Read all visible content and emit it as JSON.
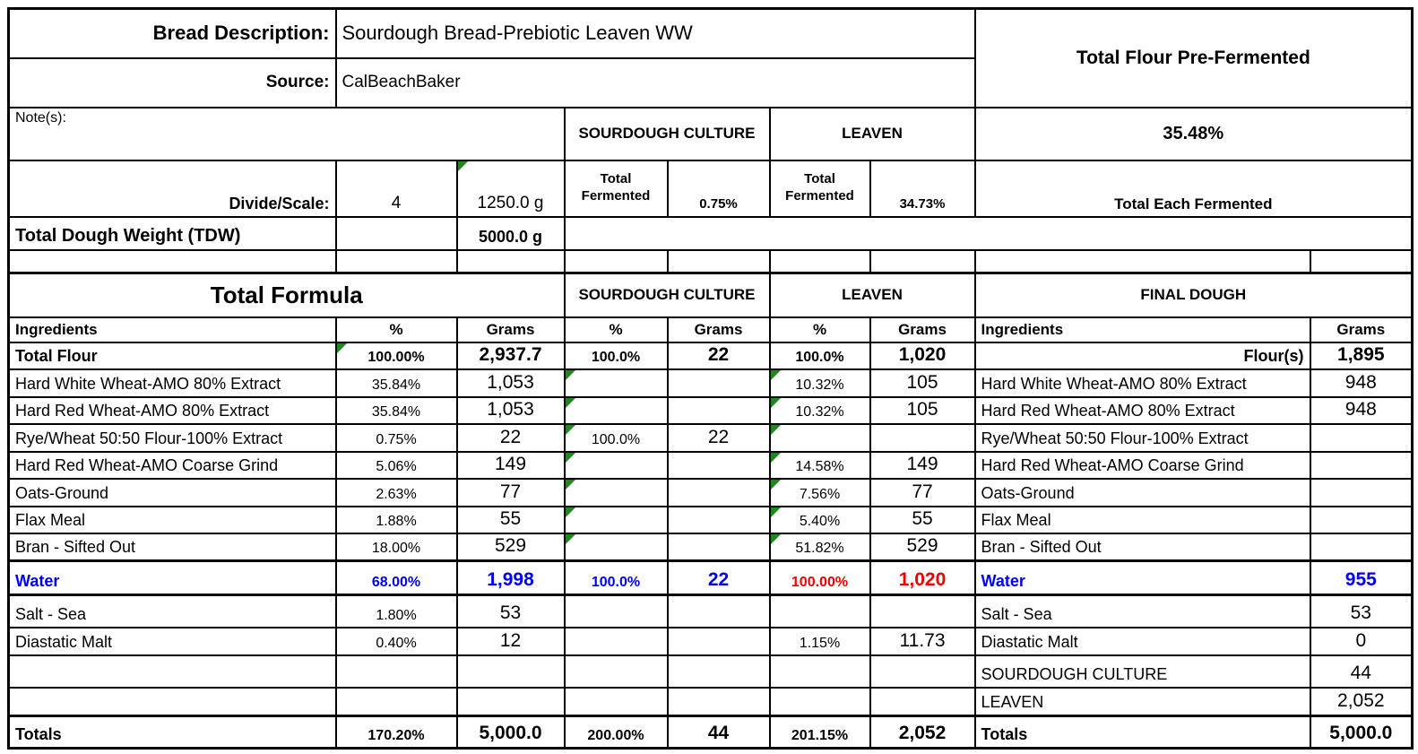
{
  "colors": {
    "accent_blue": "#0000EE",
    "accent_red": "#EE0000",
    "indicator_green": "#1e8a1e",
    "grid": "#000000"
  },
  "top": {
    "bread_description_label": "Bread Description:",
    "bread_description_value": "Sourdough Bread-Prebiotic Leaven WW",
    "source_label": "Source:",
    "source_value": "CalBeachBaker",
    "total_flour_prefermented_header": "Total Flour Pre-Fermented",
    "total_flour_prefermented_value": "35.48%",
    "notes_label": "Note(s):",
    "sourdough_culture_header": "SOURDOUGH CULTURE",
    "leaven_header": "LEAVEN",
    "divide_scale_label": "Divide/Scale:",
    "divide_scale_count": "4",
    "divide_scale_weight": "1250.0 g",
    "sc_total_fermented_label": "Total Fermented",
    "sc_total_fermented_value": "0.75%",
    "leaven_total_fermented_label": "Total Fermented",
    "leaven_total_fermented_value": "34.73%",
    "total_each_fermented_label": "Total Each Fermented",
    "tdw_label": "Total Dough Weight (TDW)",
    "tdw_value": "5000.0 g"
  },
  "formula": {
    "total_formula_header": "Total Formula",
    "sourdough_culture_header": "SOURDOUGH CULTURE",
    "leaven_header": "LEAVEN",
    "final_dough_header": "FINAL DOUGH",
    "col_headers": {
      "ingredients": "Ingredients",
      "percent": "%",
      "grams": "Grams",
      "fd_ingredients": "Ingredients",
      "fd_grams": "Grams"
    },
    "rows": [
      [
        {
          "t": "Total Flour",
          "s": "b"
        },
        {
          "t": "100.00%",
          "s": "b",
          "tri": 1
        },
        {
          "t": "2,937.7",
          "s": "b"
        },
        {
          "t": "100.0%",
          "s": "b"
        },
        {
          "t": "22",
          "s": "b"
        },
        {
          "t": "100.0%",
          "s": "b"
        },
        {
          "t": "1,020",
          "s": "b"
        },
        {
          "t": "Flour(s)",
          "s": "b ar"
        },
        {
          "t": "1,895",
          "s": "b"
        }
      ],
      [
        {
          "t": "Hard White Wheat-AMO 80% Extract"
        },
        {
          "t": "35.84%"
        },
        {
          "t": "1,053"
        },
        {
          "tri": 1
        },
        {},
        {
          "t": "10.32%",
          "tri": 1
        },
        {
          "t": "105"
        },
        {
          "t": "Hard White Wheat-AMO 80% Extract"
        },
        {
          "t": "948"
        }
      ],
      [
        {
          "t": "Hard Red Wheat-AMO 80% Extract"
        },
        {
          "t": "35.84%"
        },
        {
          "t": "1,053"
        },
        {
          "tri": 1
        },
        {},
        {
          "t": "10.32%",
          "tri": 1
        },
        {
          "t": "105"
        },
        {
          "t": "Hard Red Wheat-AMO 80% Extract"
        },
        {
          "t": "948"
        }
      ],
      [
        {
          "t": "Rye/Wheat 50:50 Flour-100% Extract"
        },
        {
          "t": "0.75%"
        },
        {
          "t": "22"
        },
        {
          "t": "100.0%",
          "tri": 1
        },
        {
          "t": "22"
        },
        {
          "tri": 1
        },
        {},
        {
          "t": "Rye/Wheat 50:50 Flour-100% Extract"
        },
        {}
      ],
      [
        {
          "t": "Hard Red Wheat-AMO Coarse Grind"
        },
        {
          "t": "5.06%"
        },
        {
          "t": "149"
        },
        {
          "tri": 1
        },
        {},
        {
          "t": "14.58%",
          "tri": 1
        },
        {
          "t": "149"
        },
        {
          "t": "Hard Red Wheat-AMO Coarse Grind"
        },
        {}
      ],
      [
        {
          "t": "Oats-Ground"
        },
        {
          "t": "2.63%"
        },
        {
          "t": "77"
        },
        {
          "tri": 1
        },
        {},
        {
          "t": "7.56%",
          "tri": 1
        },
        {
          "t": "77"
        },
        {
          "t": "Oats-Ground"
        },
        {}
      ],
      [
        {
          "t": "Flax Meal"
        },
        {
          "t": "1.88%"
        },
        {
          "t": "55"
        },
        {
          "tri": 1
        },
        {},
        {
          "t": "5.40%",
          "tri": 1
        },
        {
          "t": "55"
        },
        {
          "t": "Flax Meal"
        },
        {}
      ],
      [
        {
          "t": "Bran - Sifted Out"
        },
        {
          "t": "18.00%"
        },
        {
          "t": "529"
        },
        {
          "tri": 1
        },
        {},
        {
          "t": "51.82%",
          "tri": 1
        },
        {
          "t": "529"
        },
        {
          "t": "Bran - Sifted Out"
        },
        {}
      ],
      [
        {
          "t": "Water",
          "s": "b blue"
        },
        {
          "t": "68.00%",
          "s": "b blue"
        },
        {
          "t": "1,998",
          "s": "b blue"
        },
        {
          "t": "100.0%",
          "s": "b blue"
        },
        {
          "t": "22",
          "s": "b blue"
        },
        {
          "t": "100.00%",
          "s": "b red"
        },
        {
          "t": "1,020",
          "s": "b red"
        },
        {
          "t": "Water",
          "s": "b blue"
        },
        {
          "t": "955",
          "s": "b blue"
        }
      ],
      [
        {
          "t": "Salt - Sea"
        },
        {
          "t": "1.80%"
        },
        {
          "t": "53"
        },
        {},
        {},
        {},
        {},
        {
          "t": "Salt - Sea"
        },
        {
          "t": "53"
        }
      ],
      [
        {
          "t": "Diastatic Malt"
        },
        {
          "t": "0.40%"
        },
        {
          "t": "12"
        },
        {},
        {},
        {
          "t": "1.15%"
        },
        {
          "t": "11.73"
        },
        {
          "t": "Diastatic Malt"
        },
        {
          "t": "0"
        }
      ],
      [
        {},
        {},
        {},
        {},
        {},
        {},
        {},
        {
          "t": "SOURDOUGH CULTURE"
        },
        {
          "t": "44"
        }
      ],
      [
        {},
        {},
        {},
        {},
        {},
        {},
        {},
        {
          "t": "LEAVEN"
        },
        {
          "t": "2,052"
        }
      ],
      [
        {
          "t": "Totals",
          "s": "b"
        },
        {
          "t": "170.20%",
          "s": "b"
        },
        {
          "t": "5,000.0",
          "s": "b"
        },
        {
          "t": "200.00%",
          "s": "b"
        },
        {
          "t": "44",
          "s": "b"
        },
        {
          "t": "201.15%",
          "s": "b"
        },
        {
          "t": "2,052",
          "s": "b"
        },
        {
          "t": "Totals",
          "s": "b"
        },
        {
          "t": "5,000.0",
          "s": "b"
        }
      ]
    ]
  }
}
